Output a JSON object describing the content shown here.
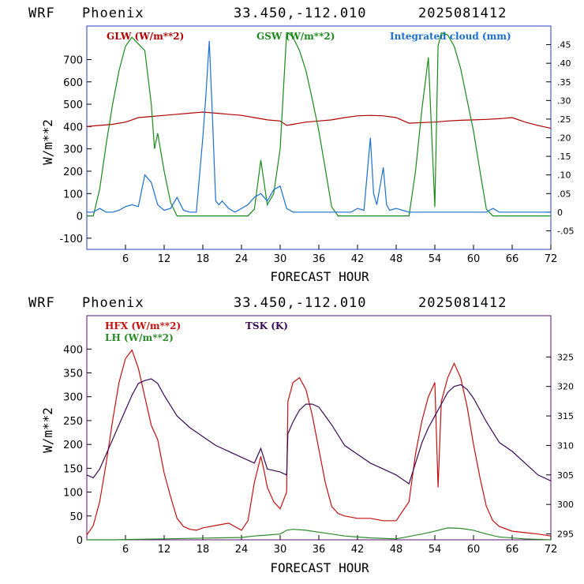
{
  "panels": [
    {
      "header": {
        "model": "WRF",
        "site": "Phoenix",
        "coords": "33.450,-112.010",
        "run": "2025081412"
      }
    },
    {
      "header": {
        "model": "WRF",
        "site": "Phoenix",
        "coords": "33.450,-112.010",
        "run": "2025081412"
      }
    }
  ],
  "chart_data": [
    {
      "type": "line",
      "xlabel": "FORECAST HOUR",
      "ylabel": "W/m**2",
      "xlim": [
        0,
        72
      ],
      "ylim": [
        -150,
        850
      ],
      "y2lim": [
        -0.1,
        0.5
      ],
      "xticks": [
        6,
        12,
        18,
        24,
        30,
        36,
        42,
        48,
        54,
        60,
        66,
        72
      ],
      "yticks": [
        -100,
        0,
        100,
        200,
        300,
        400,
        500,
        600,
        700
      ],
      "y2ticks": [
        {
          "v": -0.05,
          "label": "-.05"
        },
        {
          "v": 0,
          "label": "0"
        },
        {
          "v": 0.05,
          "label": ".05"
        },
        {
          "v": 0.1,
          "label": ".10"
        },
        {
          "v": 0.15,
          "label": ".15"
        },
        {
          "v": 0.2,
          "label": ".20"
        },
        {
          "v": 0.25,
          "label": ".25"
        },
        {
          "v": 0.3,
          "label": ".30"
        },
        {
          "v": 0.35,
          "label": ".35"
        },
        {
          "v": 0.4,
          "label": ".40"
        },
        {
          "v": 0.45,
          "label": ".45"
        }
      ],
      "series": [
        {
          "name": "GLW (W/m**2)",
          "color": "#b00000",
          "axis": "left",
          "x": [
            0,
            2,
            4,
            6,
            7,
            8,
            10,
            12,
            14,
            16,
            18,
            20,
            22,
            24,
            26,
            28,
            30,
            31,
            32,
            34,
            36,
            38,
            40,
            42,
            44,
            46,
            48,
            50,
            52,
            54,
            56,
            58,
            60,
            62,
            64,
            66,
            68,
            70,
            72
          ],
          "y": [
            400,
            405,
            410,
            420,
            430,
            440,
            445,
            450,
            455,
            460,
            465,
            460,
            455,
            450,
            440,
            430,
            425,
            405,
            410,
            420,
            425,
            430,
            440,
            448,
            450,
            448,
            440,
            415,
            418,
            420,
            425,
            428,
            430,
            432,
            435,
            440,
            420,
            405,
            392
          ]
        },
        {
          "name": "GSW (W/m**2)",
          "color": "#1a8a1a",
          "axis": "left",
          "x": [
            0,
            1,
            2,
            3,
            4,
            5,
            6,
            7,
            8,
            9,
            10,
            10.5,
            11,
            12,
            13,
            14,
            15,
            16,
            17,
            18,
            19,
            20,
            21,
            22,
            23,
            24,
            25,
            26,
            27,
            28,
            29,
            30,
            31,
            31.2,
            32,
            33,
            34,
            35,
            36,
            37,
            38,
            39,
            40,
            41,
            42,
            43,
            44,
            45,
            46,
            47,
            48,
            49,
            50,
            51,
            52,
            53,
            54,
            54.5,
            55,
            56,
            57,
            58,
            59,
            60,
            61,
            62,
            63,
            64,
            72
          ],
          "y": [
            0,
            0,
            120,
            320,
            500,
            650,
            760,
            800,
            770,
            740,
            500,
            300,
            370,
            200,
            60,
            0,
            0,
            0,
            0,
            0,
            0,
            0,
            0,
            0,
            0,
            0,
            0,
            30,
            250,
            50,
            100,
            300,
            820,
            820,
            800,
            740,
            650,
            520,
            380,
            210,
            40,
            0,
            0,
            0,
            0,
            0,
            0,
            0,
            0,
            0,
            0,
            0,
            0,
            200,
            480,
            710,
            40,
            760,
            820,
            810,
            760,
            660,
            520,
            380,
            200,
            30,
            0,
            0,
            0
          ]
        },
        {
          "name": "Integrated cloud (mm)",
          "color": "#1a6fd0",
          "axis": "right",
          "x": [
            0,
            1,
            2,
            3,
            4,
            5,
            6,
            7,
            8,
            9,
            10,
            11,
            12,
            13,
            14,
            15,
            16,
            17,
            18,
            18.5,
            19,
            19.5,
            20,
            20.5,
            21,
            22,
            23,
            24,
            25,
            26,
            27,
            28,
            29,
            30,
            31,
            32,
            33,
            34,
            35,
            36,
            37,
            38,
            39,
            40,
            41,
            42,
            43,
            44,
            44.5,
            45,
            46,
            46.5,
            47,
            48,
            49,
            50,
            52,
            54,
            56,
            58,
            60,
            62,
            63,
            64,
            65,
            72
          ],
          "y": [
            0,
            0,
            0.01,
            0,
            0,
            0.005,
            0.015,
            0.02,
            0.015,
            0.1,
            0.08,
            0.02,
            0.005,
            0.01,
            0.04,
            0.005,
            0,
            0,
            0.2,
            0.32,
            0.46,
            0.25,
            0.03,
            0.02,
            0.03,
            0.01,
            0,
            0.01,
            0.02,
            0.04,
            0.05,
            0.03,
            0.06,
            0.07,
            0.01,
            0,
            0,
            0,
            0,
            0,
            0,
            0,
            0,
            0,
            0,
            0.01,
            0.005,
            0.2,
            0.05,
            0.02,
            0.12,
            0.02,
            0.005,
            0.01,
            0.005,
            0,
            0,
            0,
            0,
            0,
            0,
            0,
            0.01,
            0,
            0,
            0
          ]
        }
      ]
    },
    {
      "type": "line",
      "xlabel": "FORECAST HOUR",
      "ylabel": "W/m**2",
      "xlim": [
        0,
        72
      ],
      "ylim": [
        0,
        470
      ],
      "y2lim": [
        294,
        332
      ],
      "xticks": [
        6,
        12,
        18,
        24,
        30,
        36,
        42,
        48,
        54,
        60,
        66,
        72
      ],
      "yticks": [
        0,
        50,
        100,
        150,
        200,
        250,
        300,
        350,
        400
      ],
      "y2ticks": [
        {
          "v": 295,
          "label": "295"
        },
        {
          "v": 300,
          "label": "300"
        },
        {
          "v": 305,
          "label": "305"
        },
        {
          "v": 310,
          "label": "310"
        },
        {
          "v": 315,
          "label": "315"
        },
        {
          "v": 320,
          "label": "320"
        },
        {
          "v": 325,
          "label": "325"
        }
      ],
      "series": [
        {
          "name": "HFX (W/m**2)",
          "color": "#c41010",
          "axis": "left",
          "x": [
            0,
            1,
            2,
            3,
            4,
            5,
            6,
            7,
            8,
            9,
            10,
            11,
            12,
            13,
            14,
            15,
            16,
            17,
            18,
            20,
            22,
            24,
            25,
            26,
            27,
            27.5,
            28,
            29,
            30,
            31,
            31.2,
            32,
            33,
            34,
            35,
            36,
            37,
            38,
            39,
            40,
            42,
            44,
            46,
            48,
            50,
            51,
            52,
            53,
            54,
            54.5,
            55,
            56,
            57,
            58,
            59,
            60,
            61,
            62,
            63,
            64,
            66,
            68,
            70,
            72
          ],
          "y": [
            10,
            30,
            80,
            160,
            250,
            330,
            380,
            398,
            360,
            300,
            240,
            210,
            140,
            90,
            45,
            28,
            22,
            20,
            25,
            30,
            35,
            20,
            40,
            120,
            175,
            145,
            110,
            80,
            65,
            100,
            290,
            330,
            340,
            315,
            260,
            190,
            120,
            70,
            55,
            50,
            45,
            45,
            40,
            40,
            80,
            180,
            250,
            300,
            330,
            110,
            290,
            340,
            370,
            340,
            280,
            200,
            130,
            70,
            40,
            28,
            18,
            15,
            12,
            8
          ]
        },
        {
          "name": "LH (W/m**2)",
          "color": "#2a8a2a",
          "axis": "left",
          "x": [
            0,
            4,
            8,
            12,
            16,
            20,
            24,
            26,
            28,
            30,
            31,
            32,
            34,
            36,
            38,
            40,
            44,
            48,
            52,
            54,
            56,
            58,
            60,
            62,
            64,
            68,
            72
          ],
          "y": [
            0,
            0,
            1,
            2,
            3,
            4,
            5,
            8,
            10,
            12,
            20,
            22,
            20,
            16,
            12,
            8,
            4,
            2,
            12,
            18,
            25,
            24,
            20,
            12,
            6,
            2,
            0
          ]
        },
        {
          "name": "TSK (K)",
          "color": "#3a0a55",
          "axis": "right",
          "x": [
            0,
            1,
            2,
            3,
            4,
            5,
            6,
            7,
            8,
            9,
            10,
            11,
            12,
            14,
            16,
            18,
            20,
            22,
            24,
            26,
            27,
            28,
            30,
            31,
            31.2,
            32,
            33,
            34,
            35,
            36,
            37,
            38,
            40,
            42,
            44,
            46,
            48,
            50,
            51,
            52,
            53,
            54,
            55,
            56,
            57,
            58,
            59,
            60,
            61,
            62,
            64,
            66,
            68,
            70,
            72
          ],
          "y": [
            305,
            304.5,
            306,
            308.5,
            311,
            313.5,
            316,
            318.5,
            320.5,
            321,
            321.3,
            320.5,
            318.5,
            315,
            313,
            311.5,
            310,
            309,
            308,
            307,
            309.5,
            306,
            305.5,
            305,
            312,
            314,
            316,
            317,
            317,
            316.5,
            315,
            313.5,
            310,
            308.5,
            307,
            306,
            305,
            303.5,
            307,
            310.5,
            313,
            315,
            317,
            319,
            320,
            320.3,
            319.5,
            318,
            316,
            314,
            310.5,
            309,
            307,
            305,
            304
          ]
        }
      ]
    }
  ],
  "legends": [
    [
      {
        "label": "GLW (W/m**2)",
        "color": "#b00000"
      },
      {
        "label": "GSW (W/m**2)",
        "color": "#1a8a1a"
      },
      {
        "label": "Integrated cloud (mm)",
        "color": "#1a6fd0"
      }
    ],
    [
      {
        "label": "HFX (W/m**2)",
        "color": "#c41010"
      },
      {
        "label": "LH (W/m**2)",
        "color": "#2a8a2a"
      },
      {
        "label": "TSK (K)",
        "color": "#3a0a55"
      }
    ]
  ]
}
